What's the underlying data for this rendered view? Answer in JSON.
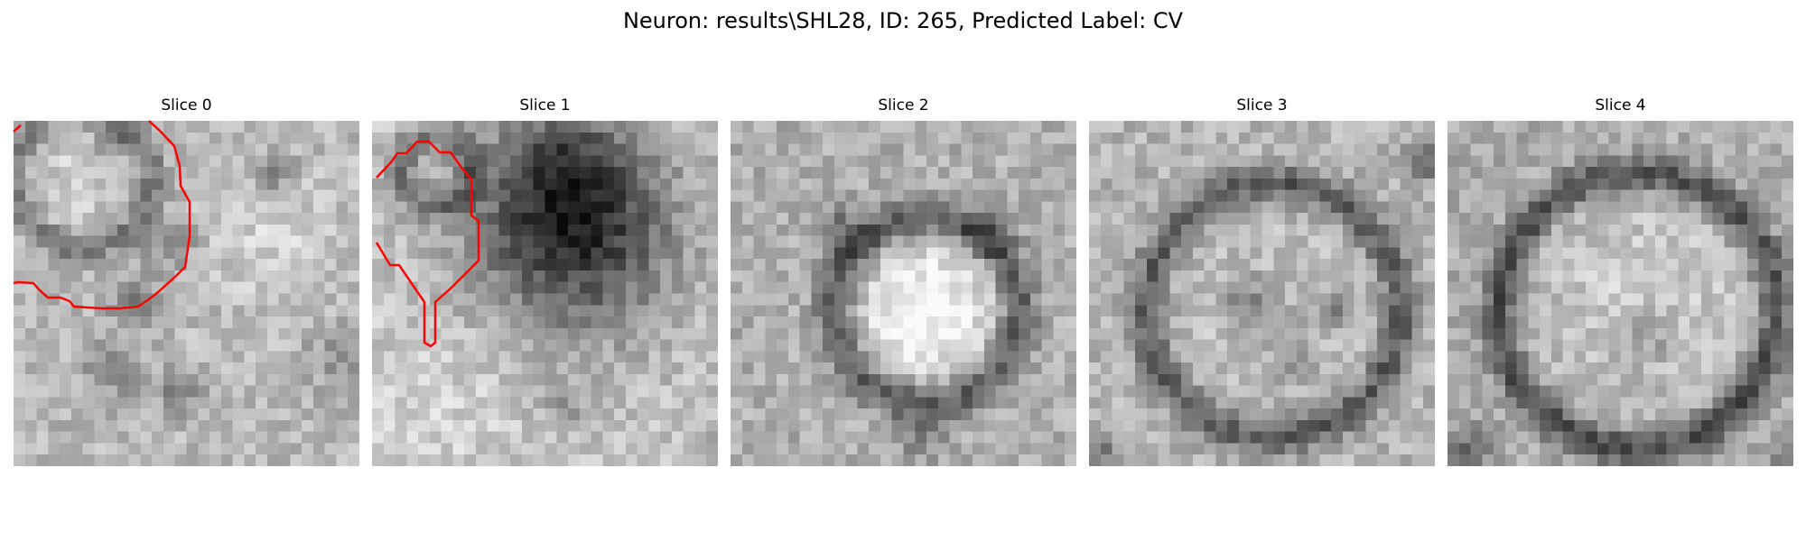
{
  "figure": {
    "title": "Neuron: results\\SHL28, ID: 265, Predicted Label: CV"
  },
  "panels": [
    {
      "title": "Slice 0",
      "contour_color": "#ff0000"
    },
    {
      "title": "Slice 1",
      "contour_color": "#ff0000"
    },
    {
      "title": "Slice 2",
      "contour_color": "#ff0000"
    },
    {
      "title": "Slice 3",
      "contour_color": "#ff0000"
    },
    {
      "title": "Slice 4",
      "contour_color": "#ff0000"
    }
  ]
}
